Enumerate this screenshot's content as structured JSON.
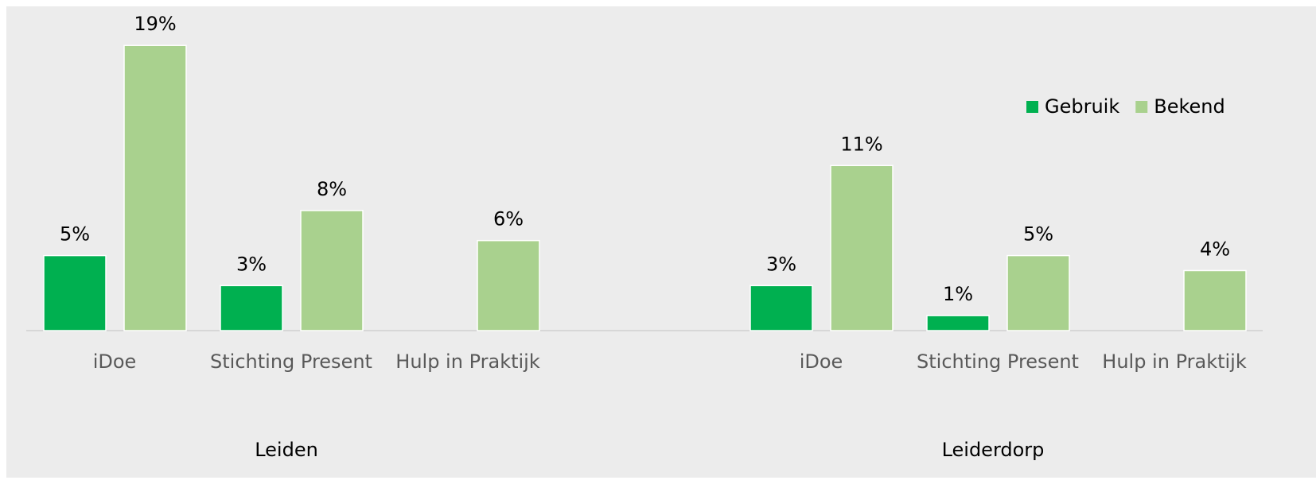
{
  "chart_data": {
    "type": "bar",
    "categories": [
      "iDoe",
      "Stichting Present",
      "Hulp in Praktijk",
      null,
      "iDoe",
      "Stichting Present",
      "Hulp in Praktijk"
    ],
    "groups": [
      "Leiden",
      "Leiderdorp"
    ],
    "series": [
      {
        "name": "Gebruik",
        "color": "#00b050",
        "values": [
          5,
          3,
          null,
          null,
          3,
          1,
          null
        ],
        "value_labels": [
          "5%",
          "3%",
          null,
          null,
          "3%",
          "1%",
          null
        ]
      },
      {
        "name": "Bekend",
        "color": "#a9d18e",
        "values": [
          19,
          8,
          6,
          null,
          11,
          5,
          4
        ],
        "value_labels": [
          "19%",
          "8%",
          "6%",
          null,
          "11%",
          "5%",
          "4%"
        ]
      }
    ],
    "ylim": [
      0,
      21.5
    ],
    "legend": "upper right"
  }
}
